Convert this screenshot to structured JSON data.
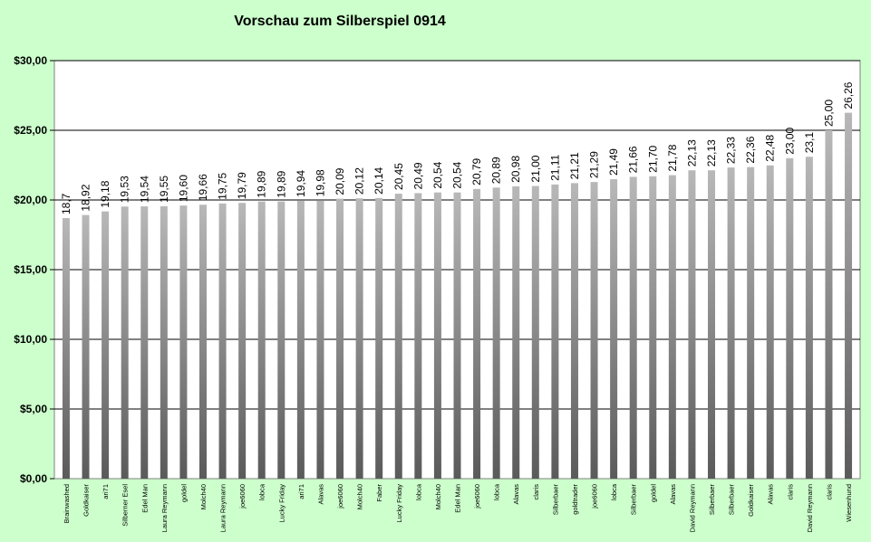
{
  "chart_data": {
    "type": "bar",
    "title": "Vorschau zum Silberspiel 0914",
    "xlabel": "",
    "ylabel": "",
    "ylim": [
      0,
      30
    ],
    "yticks": [
      "$0,00",
      "$5,00",
      "$10,00",
      "$15,00",
      "$20,00",
      "$25,00",
      "$30,00"
    ],
    "grid": true,
    "legend": "none",
    "colors": {
      "background": "#ccffcc",
      "plot": "#ffffff",
      "bar_light": "#b8b8b8",
      "bar_dark": "#5a5a5a"
    },
    "categories": [
      "Brainwashed",
      "Goldkaiser",
      "ari71",
      "Silberner Esel",
      "Edel Man",
      "Laura Reymann",
      "goldel",
      "Molch40",
      "Laura Reymann",
      "joe6060",
      "lobca",
      "Lucky Friday",
      "ari71",
      "Alavas",
      "joe6060",
      "Molch40",
      "Faber",
      "Lucky Friday",
      "lobca",
      "Molch40",
      "Edel Man",
      "joe6060",
      "lobca",
      "Alavas",
      "claris",
      "Silberbaer",
      "goldtrader",
      "joe6060",
      "lobca",
      "Silberbaer",
      "goldel",
      "Alavas",
      "David Reymann",
      "Silberbaer",
      "Silberbaer",
      "Goldkaiser",
      "Alavas",
      "claris",
      "David Reymann",
      "claris",
      "Wiesenhund"
    ],
    "values": [
      18.7,
      18.92,
      19.18,
      19.53,
      19.54,
      19.55,
      19.6,
      19.66,
      19.75,
      19.79,
      19.89,
      19.89,
      19.94,
      19.98,
      20.09,
      20.12,
      20.14,
      20.45,
      20.49,
      20.54,
      20.54,
      20.79,
      20.89,
      20.98,
      21.0,
      21.11,
      21.21,
      21.29,
      21.49,
      21.66,
      21.7,
      21.78,
      22.13,
      22.13,
      22.33,
      22.36,
      22.48,
      23.0,
      23.1,
      25.0,
      26.26
    ],
    "value_labels": [
      "18,7",
      "18,92",
      "19,18",
      "19,53",
      "19,54",
      "19,55",
      "19,60",
      "19,66",
      "19,75",
      "19,79",
      "19,89",
      "19,89",
      "19,94",
      "19,98",
      "20,09",
      "20,12",
      "20,14",
      "20,45",
      "20,49",
      "20,54",
      "20,54",
      "20,79",
      "20,89",
      "20,98",
      "21,00",
      "21,11",
      "21,21",
      "21,29",
      "21,49",
      "21,66",
      "21,70",
      "21,78",
      "22,13",
      "22,13",
      "22,33",
      "22,36",
      "22,48",
      "23,00",
      "23,1",
      "25,00",
      "26,26"
    ]
  }
}
